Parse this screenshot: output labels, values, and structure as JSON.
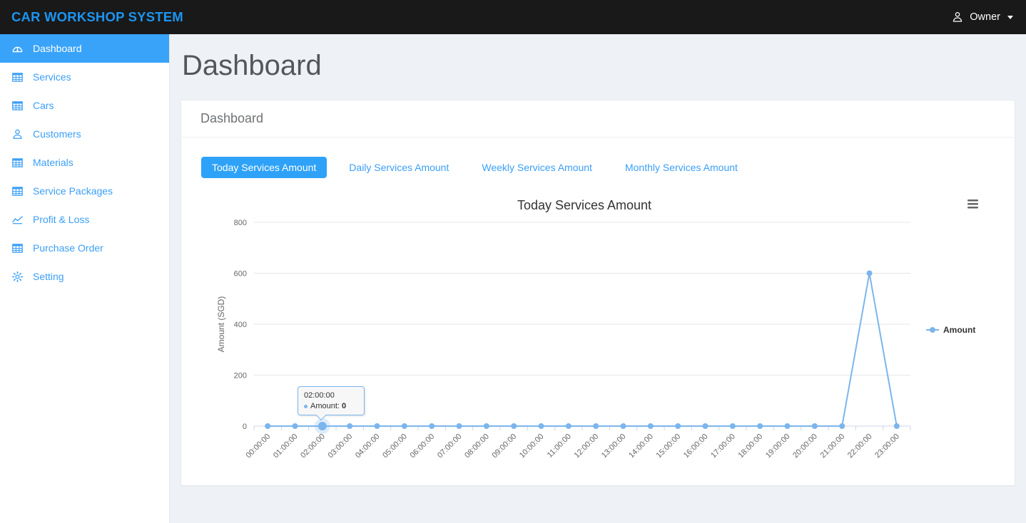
{
  "colors": {
    "navbar_bg": "#191919",
    "brand": "#1b95f2",
    "accent": "#3b9ff6",
    "accent_active": "#2ea2f8",
    "accent_active_side": "#38a3f9"
  },
  "navbar": {
    "brand": "CAR WORKSHOP SYSTEM",
    "user": "Owner"
  },
  "sidebar": {
    "items": [
      {
        "label": "Dashboard",
        "icon": "gauge",
        "active": true
      },
      {
        "label": "Services",
        "icon": "table",
        "active": false
      },
      {
        "label": "Cars",
        "icon": "table",
        "active": false
      },
      {
        "label": "Customers",
        "icon": "user",
        "active": false
      },
      {
        "label": "Materials",
        "icon": "table",
        "active": false
      },
      {
        "label": "Service Packages",
        "icon": "table",
        "active": false
      },
      {
        "label": "Profit & Loss",
        "icon": "chart",
        "active": false
      },
      {
        "label": "Purchase Order",
        "icon": "table",
        "active": false
      },
      {
        "label": "Setting",
        "icon": "gear",
        "active": false
      }
    ]
  },
  "page": {
    "title": "Dashboard"
  },
  "panel": {
    "title": "Dashboard"
  },
  "tabs": [
    {
      "label": "Today Services Amount",
      "active": true
    },
    {
      "label": "Daily Services Amount",
      "active": false
    },
    {
      "label": "Weekly Services Amount",
      "active": false
    },
    {
      "label": "Monthly Services Amount",
      "active": false
    }
  ],
  "chart_data": {
    "type": "line",
    "title": "Today Services Amount",
    "xlabel": "",
    "ylabel": "Amount (SGD)",
    "categories": [
      "00:00:00",
      "01:00:00",
      "02:00:00",
      "03:00:00",
      "04:00:00",
      "05:00:00",
      "06:00:00",
      "07:00:00",
      "08:00:00",
      "09:00:00",
      "10:00:00",
      "11:00:00",
      "12:00:00",
      "13:00:00",
      "14:00:00",
      "15:00:00",
      "16:00:00",
      "17:00:00",
      "18:00:00",
      "19:00:00",
      "20:00:00",
      "21:00:00",
      "22:00:00",
      "23:00:00"
    ],
    "series": [
      {
        "name": "Amount",
        "color": "#7cb5ec",
        "values": [
          0,
          0,
          0,
          0,
          0,
          0,
          0,
          0,
          0,
          0,
          0,
          0,
          0,
          0,
          0,
          0,
          0,
          0,
          0,
          0,
          0,
          0,
          600,
          0
        ]
      }
    ],
    "ylim": [
      0,
      800
    ],
    "yticks": [
      0,
      200,
      400,
      600,
      800
    ],
    "grid": true,
    "legend_position": "right",
    "hover_index": 2,
    "tooltip": {
      "header": "02:00:00",
      "series_label": "Amount:",
      "value": "0"
    },
    "colors": {
      "grid": "#e6e6e6",
      "axis": "#ccd6eb",
      "label": "#666666",
      "title": "#333333"
    }
  }
}
